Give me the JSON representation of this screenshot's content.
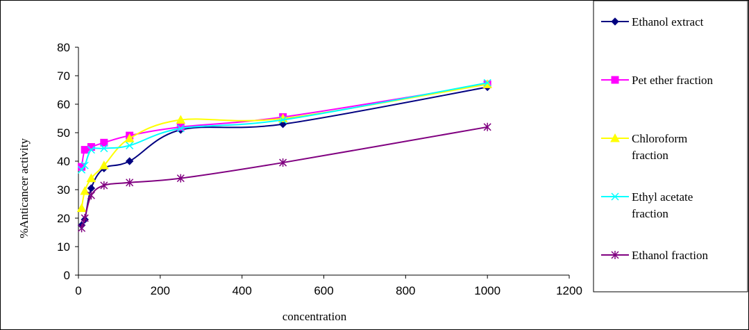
{
  "chart_data": {
    "type": "line",
    "xlabel": "concentration",
    "ylabel": "%Anticancer activity",
    "xlim": [
      0,
      1200
    ],
    "ylim": [
      0,
      80
    ],
    "xticks": [
      0,
      200,
      400,
      600,
      800,
      1000,
      1200
    ],
    "yticks": [
      0,
      10,
      20,
      30,
      40,
      50,
      60,
      70,
      80
    ],
    "grid": false,
    "legend_position": "right",
    "series": [
      {
        "name": "Ethanol extract",
        "color": "#000080",
        "marker": "diamond",
        "points": [
          [
            7.8,
            17.5
          ],
          [
            15.6,
            19.5
          ],
          [
            31.25,
            30.5
          ],
          [
            62.5,
            37.5
          ],
          [
            125,
            40
          ],
          [
            250,
            51
          ],
          [
            500,
            53
          ],
          [
            1000,
            66
          ]
        ]
      },
      {
        "name": "Pet ether fraction",
        "color": "#FF00FF",
        "marker": "square",
        "points": [
          [
            7.8,
            38
          ],
          [
            15.6,
            44
          ],
          [
            31.25,
            45
          ],
          [
            62.5,
            46.5
          ],
          [
            125,
            49
          ],
          [
            250,
            52
          ],
          [
            500,
            55.5
          ],
          [
            1000,
            67
          ]
        ]
      },
      {
        "name": "Chloroform fraction",
        "legend_lines": [
          "Chloroform",
          "fraction"
        ],
        "color": "#FFFF00",
        "marker": "triangle",
        "points": [
          [
            7.8,
            23.5
          ],
          [
            15.6,
            29.5
          ],
          [
            31.25,
            34
          ],
          [
            62.5,
            38.5
          ],
          [
            125,
            48
          ],
          [
            250,
            54.5
          ],
          [
            500,
            55
          ],
          [
            1000,
            67
          ]
        ]
      },
      {
        "name": "Ethyl acetate fraction",
        "legend_lines": [
          "Ethyl acetate",
          "fraction"
        ],
        "color": "#00FFFF",
        "marker": "x",
        "points": [
          [
            7.8,
            37
          ],
          [
            15.6,
            38.5
          ],
          [
            31.25,
            44
          ],
          [
            62.5,
            44.5
          ],
          [
            125,
            45.5
          ],
          [
            250,
            51.5
          ],
          [
            500,
            54.5
          ],
          [
            1000,
            67.5
          ]
        ]
      },
      {
        "name": "Ethanol fraction",
        "color": "#800080",
        "marker": "asterisk",
        "points": [
          [
            7.8,
            16.5
          ],
          [
            15.6,
            20
          ],
          [
            31.25,
            28
          ],
          [
            62.5,
            31.5
          ],
          [
            125,
            32.5
          ],
          [
            250,
            34
          ],
          [
            500,
            39.5
          ],
          [
            1000,
            52
          ]
        ]
      }
    ]
  }
}
